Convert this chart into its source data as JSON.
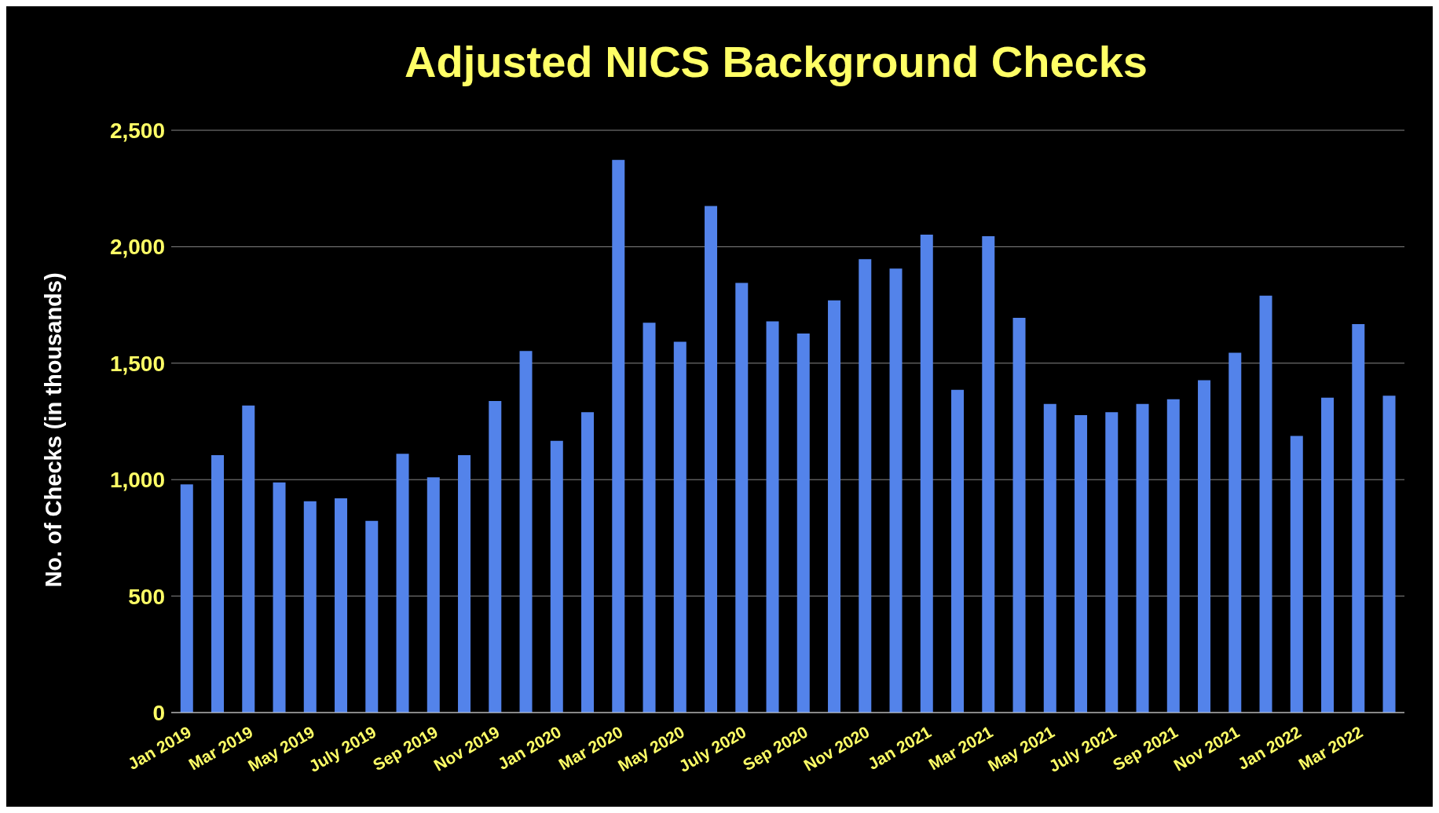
{
  "chart_data": {
    "type": "bar",
    "title": "Adjusted NICS Background Checks",
    "ylabel": "No. of Checks (in thousands)",
    "categories": [
      "Jan 2019",
      null,
      "Mar 2019",
      null,
      "May 2019",
      null,
      "July 2019",
      null,
      "Sep 2019",
      null,
      "Nov 2019",
      null,
      "Jan 2020",
      null,
      "Mar 2020",
      null,
      "May 2020",
      null,
      "July 2020",
      null,
      "Sep 2020",
      null,
      "Nov 2020",
      null,
      "Jan 2021",
      null,
      "Mar 2021",
      null,
      "May 2021",
      null,
      "July 2021",
      null,
      "Sep 2021",
      null,
      "Nov 2021",
      null,
      "Jan 2022",
      null,
      "Mar 2022",
      null
    ],
    "values": [
      980,
      1105,
      1318,
      988,
      907,
      920,
      823,
      1111,
      1010,
      1105,
      1338,
      1552,
      1167,
      1290,
      2373,
      1674,
      1592,
      2175,
      1845,
      1680,
      1627,
      1770,
      1947,
      1906,
      2052,
      1386,
      2045,
      1695,
      1325,
      1277,
      1290,
      1325,
      1345,
      1427,
      1545,
      1790,
      1188,
      1352,
      1668,
      1360
    ],
    "color": "#5383ea",
    "ylim": [
      0,
      2500
    ],
    "yticks": [
      {
        "value": 0,
        "label": "0"
      },
      {
        "value": 500,
        "label": "500"
      },
      {
        "value": 1000,
        "label": "1,000"
      },
      {
        "value": 1500,
        "label": "1,500"
      },
      {
        "value": 2000,
        "label": "2,000"
      },
      {
        "value": 2500,
        "label": "2,500"
      }
    ],
    "grid": "y"
  }
}
